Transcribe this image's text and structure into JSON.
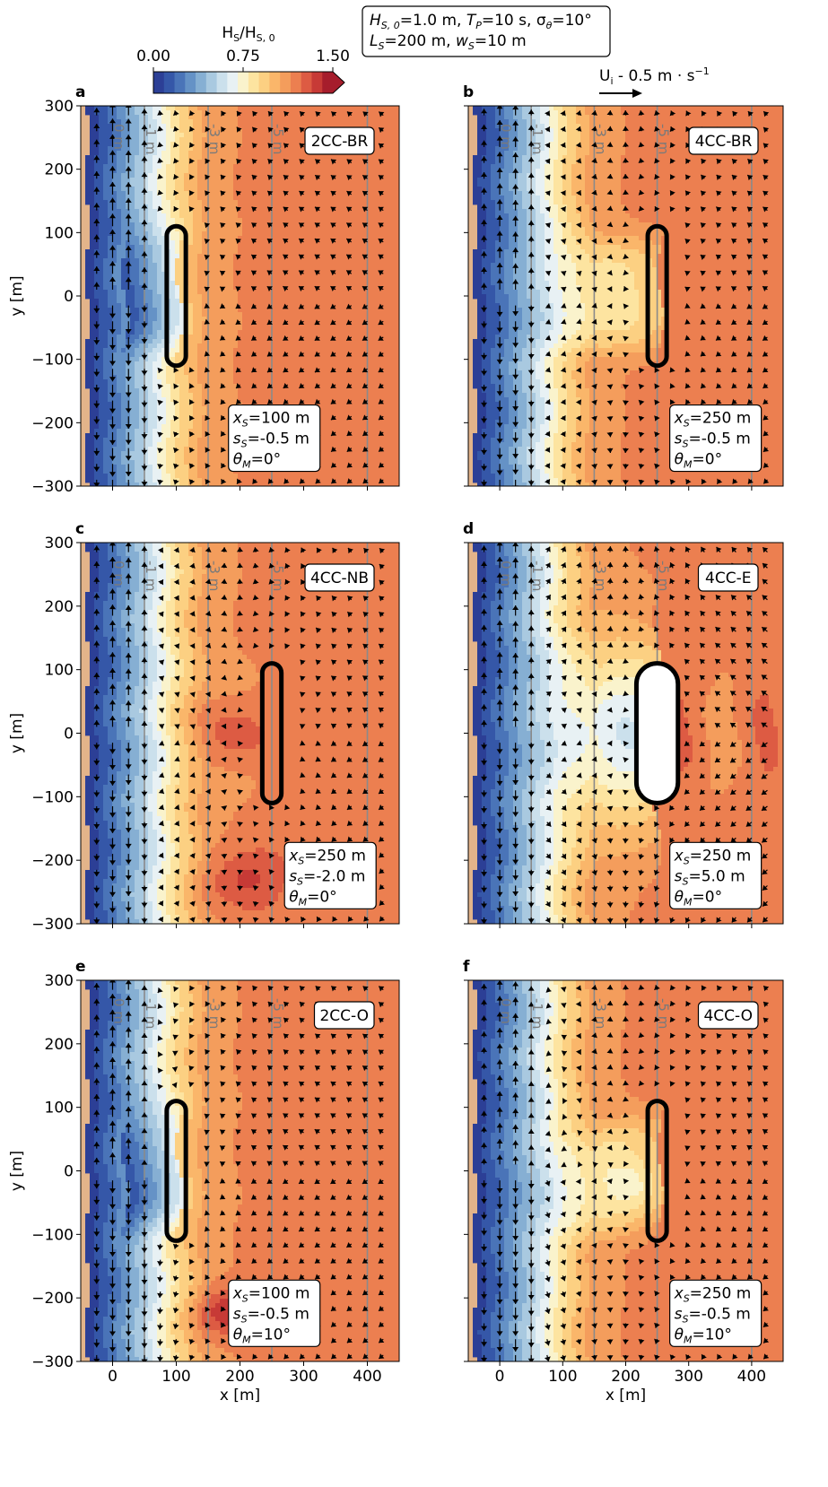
{
  "header": {
    "params_line1": [
      "H",
      "S, 0",
      "=1.0 m, ",
      "T",
      "P",
      "=10 s, σ",
      "θ",
      "=10°"
    ],
    "params_line2": [
      "L",
      "S",
      "=200 m, ",
      "w",
      "S",
      "=10 m"
    ]
  },
  "colorbar": {
    "title_main": "H",
    "title_sub1": "S",
    "title_sep": "/H",
    "title_sub2": "S, 0",
    "tick_labels": [
      "0.00",
      "0.75",
      "1.50"
    ],
    "ticks": [
      0,
      0.75,
      1.5
    ],
    "range": [
      0,
      1.5
    ],
    "colors": [
      "#2c3f96",
      "#3557a8",
      "#4a74b8",
      "#6592c6",
      "#86afd3",
      "#a9c9e0",
      "#cbe0ec",
      "#e8f1f4",
      "#faf3cc",
      "#fde4a0",
      "#fcd082",
      "#fab66a",
      "#f49d5c",
      "#ec7f50",
      "#dd5b43",
      "#c73a36",
      "#a61d2c"
    ]
  },
  "vector_key": {
    "label_main": "U",
    "label_sub": "i",
    "label_rest": " - 0.5 m · s",
    "label_exp": "−1",
    "value": 0.5
  },
  "axes": {
    "xlabel": "x [m]",
    "ylabel": "y [m]",
    "xlim": [
      -50,
      450
    ],
    "ylim": [
      -300,
      300
    ],
    "xticks": [
      0,
      100,
      200,
      300,
      400
    ],
    "xtick_labels": [
      "0",
      "100",
      "200",
      "300",
      "400"
    ],
    "yticks": [
      300,
      200,
      100,
      0,
      -100,
      -200,
      -300
    ],
    "ytick_labels": [
      "300",
      "200",
      "100",
      "0",
      "−100",
      "−200",
      "−300"
    ]
  },
  "isobath_labels": [
    "0 m",
    "-1 m",
    "-3 m",
    "-5 m"
  ],
  "colors": {
    "beach": "#e3b48a",
    "isobath": "#8a8a8a",
    "offshore": "#f9b566",
    "structure": "#000000",
    "arrows": "#000000"
  },
  "chart_data": [
    {
      "panel": "a",
      "type": "heatmap",
      "case": "2CC-BR",
      "params": [
        [
          "x",
          "S",
          "=100 m"
        ],
        [
          "s",
          "S",
          "=-0.5 m"
        ],
        [
          "θ",
          "M",
          "=0°"
        ]
      ],
      "structure": {
        "x_s": 100,
        "s_s": -0.5,
        "theta_m": 0,
        "length": 200,
        "width": 10
      }
    },
    {
      "panel": "b",
      "type": "heatmap",
      "case": "4CC-BR",
      "params": [
        [
          "x",
          "S",
          "=250 m"
        ],
        [
          "s",
          "S",
          "=-0.5 m"
        ],
        [
          "θ",
          "M",
          "=0°"
        ]
      ],
      "structure": {
        "x_s": 250,
        "s_s": -0.5,
        "theta_m": 0,
        "length": 200,
        "width": 10
      }
    },
    {
      "panel": "c",
      "type": "heatmap",
      "case": "4CC-NB",
      "params": [
        [
          "x",
          "S",
          "=250 m"
        ],
        [
          "s",
          "S",
          "=-2.0 m"
        ],
        [
          "θ",
          "M",
          "=0°"
        ]
      ],
      "structure": {
        "x_s": 250,
        "s_s": -2.0,
        "theta_m": 0,
        "length": 200,
        "width": 10
      }
    },
    {
      "panel": "d",
      "type": "heatmap",
      "case": "4CC-E",
      "params": [
        [
          "x",
          "S",
          "=250 m"
        ],
        [
          "s",
          "S",
          "=5.0 m"
        ],
        [
          "θ",
          "M",
          "=0°"
        ]
      ],
      "structure": {
        "x_s": 250,
        "s_s": 5.0,
        "theta_m": 0,
        "length": 200,
        "width": 10
      }
    },
    {
      "panel": "e",
      "type": "heatmap",
      "case": "2CC-O",
      "params": [
        [
          "x",
          "S",
          "=100 m"
        ],
        [
          "s",
          "S",
          "=-0.5 m"
        ],
        [
          "θ",
          "M",
          "=10°"
        ]
      ],
      "structure": {
        "x_s": 100,
        "s_s": -0.5,
        "theta_m": 10,
        "length": 200,
        "width": 10
      }
    },
    {
      "panel": "f",
      "type": "heatmap",
      "case": "4CC-O",
      "params": [
        [
          "x",
          "S",
          "=250 m"
        ],
        [
          "s",
          "S",
          "=-0.5 m"
        ],
        [
          "θ",
          "M",
          "=10°"
        ]
      ],
      "structure": {
        "x_s": 250,
        "s_s": -0.5,
        "theta_m": 10,
        "length": 200,
        "width": 10
      }
    }
  ]
}
